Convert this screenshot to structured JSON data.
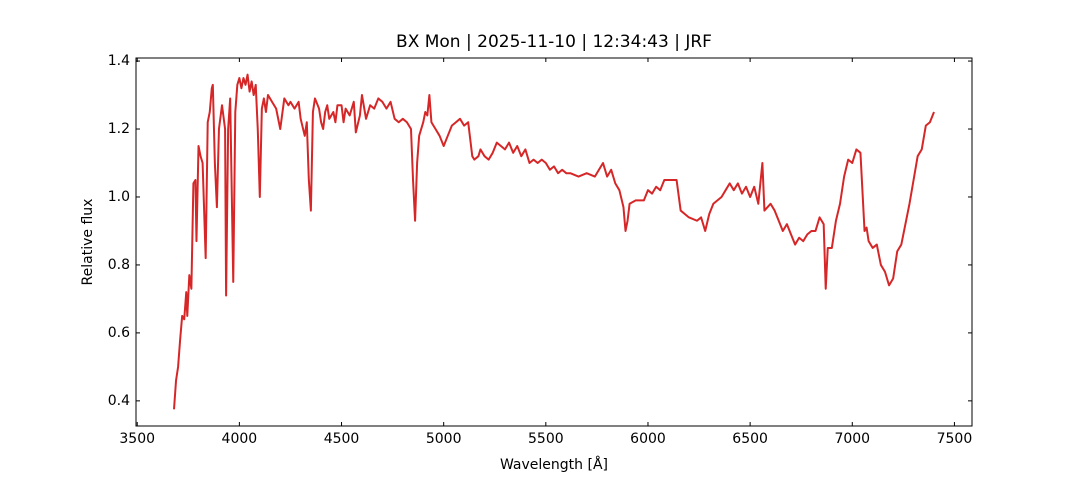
{
  "chart_data": {
    "type": "line",
    "title": "BX Mon | 2025-11-10 | 12:34:43 | JRF",
    "x_label": "Wavelength [Å]",
    "y_label": "Relative flux",
    "color": "#d62728",
    "xlim": [
      3494,
      7586
    ],
    "ylim": [
      0.326,
      1.409
    ],
    "xticks": [
      3500,
      4000,
      4500,
      5000,
      5500,
      6000,
      6500,
      7000,
      7500
    ],
    "yticks": [
      0.4,
      0.6,
      0.8,
      {
        "value": 1,
        "label": "1.0"
      },
      1.2,
      1.4
    ],
    "x": [
      3680,
      3690,
      3700,
      3710,
      3720,
      3730,
      3740,
      3745,
      3755,
      3765,
      3775,
      3785,
      3790,
      3800,
      3810,
      3820,
      3835,
      3845,
      3855,
      3865,
      3870,
      3880,
      3890,
      3900,
      3915,
      3930,
      3935,
      3945,
      3955,
      3970,
      3980,
      3990,
      4000,
      4010,
      4020,
      4030,
      4040,
      4050,
      4060,
      4070,
      4080,
      4090,
      4100,
      4110,
      4120,
      4130,
      4140,
      4160,
      4180,
      4200,
      4220,
      4240,
      4250,
      4270,
      4290,
      4300,
      4320,
      4330,
      4340,
      4350,
      4360,
      4370,
      4390,
      4400,
      4410,
      4420,
      4430,
      4440,
      4460,
      4470,
      4480,
      4500,
      4510,
      4520,
      4540,
      4560,
      4570,
      4590,
      4600,
      4620,
      4640,
      4660,
      4680,
      4700,
      4720,
      4740,
      4760,
      4780,
      4800,
      4820,
      4840,
      4850,
      4860,
      4870,
      4880,
      4900,
      4910,
      4920,
      4930,
      4940,
      4960,
      4980,
      5000,
      5020,
      5040,
      5060,
      5080,
      5100,
      5120,
      5140,
      5150,
      5170,
      5180,
      5200,
      5220,
      5240,
      5260,
      5280,
      5300,
      5320,
      5340,
      5360,
      5380,
      5400,
      5420,
      5440,
      5460,
      5480,
      5500,
      5520,
      5540,
      5560,
      5580,
      5600,
      5620,
      5660,
      5700,
      5740,
      5760,
      5780,
      5800,
      5820,
      5840,
      5860,
      5880,
      5890,
      5900,
      5910,
      5940,
      5980,
      6000,
      6020,
      6040,
      6060,
      6080,
      6100,
      6140,
      6160,
      6200,
      6240,
      6260,
      6280,
      6300,
      6320,
      6360,
      6380,
      6400,
      6420,
      6440,
      6460,
      6480,
      6500,
      6520,
      6540,
      6560,
      6570,
      6600,
      6620,
      6640,
      6660,
      6680,
      6700,
      6720,
      6740,
      6760,
      6780,
      6800,
      6820,
      6840,
      6860,
      6870,
      6880,
      6900,
      6920,
      6940,
      6960,
      6980,
      7000,
      7020,
      7040,
      7060,
      7070,
      7080,
      7100,
      7120,
      7140,
      7160,
      7180,
      7200,
      7220,
      7240,
      7260,
      7280,
      7300,
      7320,
      7340,
      7360,
      7380,
      7400
    ],
    "values": [
      0.375,
      0.46,
      0.5,
      0.58,
      0.65,
      0.64,
      0.72,
      0.65,
      0.77,
      0.73,
      1.04,
      1.05,
      0.87,
      1.15,
      1.12,
      1.1,
      0.82,
      1.22,
      1.25,
      1.32,
      1.33,
      1.1,
      0.97,
      1.2,
      1.27,
      1.2,
      0.71,
      1.2,
      1.29,
      0.75,
      1.25,
      1.33,
      1.35,
      1.32,
      1.35,
      1.33,
      1.36,
      1.31,
      1.34,
      1.3,
      1.33,
      1.2,
      1.0,
      1.26,
      1.29,
      1.25,
      1.3,
      1.28,
      1.26,
      1.2,
      1.29,
      1.27,
      1.28,
      1.26,
      1.28,
      1.23,
      1.18,
      1.22,
      1.05,
      0.96,
      1.25,
      1.29,
      1.26,
      1.22,
      1.2,
      1.25,
      1.27,
      1.23,
      1.25,
      1.22,
      1.27,
      1.27,
      1.22,
      1.26,
      1.24,
      1.28,
      1.19,
      1.24,
      1.3,
      1.23,
      1.27,
      1.26,
      1.29,
      1.28,
      1.26,
      1.28,
      1.23,
      1.22,
      1.23,
      1.22,
      1.2,
      1.05,
      0.93,
      1.1,
      1.18,
      1.22,
      1.25,
      1.24,
      1.3,
      1.22,
      1.2,
      1.18,
      1.15,
      1.18,
      1.21,
      1.22,
      1.23,
      1.21,
      1.22,
      1.12,
      1.11,
      1.12,
      1.14,
      1.12,
      1.11,
      1.13,
      1.16,
      1.15,
      1.14,
      1.16,
      1.13,
      1.15,
      1.12,
      1.14,
      1.1,
      1.11,
      1.1,
      1.11,
      1.1,
      1.08,
      1.09,
      1.07,
      1.08,
      1.07,
      1.07,
      1.06,
      1.07,
      1.06,
      1.08,
      1.1,
      1.06,
      1.08,
      1.04,
      1.02,
      0.97,
      0.9,
      0.93,
      0.98,
      0.99,
      0.99,
      1.02,
      1.01,
      1.03,
      1.02,
      1.05,
      1.05,
      1.05,
      0.96,
      0.94,
      0.93,
      0.94,
      0.9,
      0.95,
      0.98,
      1.0,
      1.02,
      1.04,
      1.02,
      1.04,
      1.01,
      1.03,
      1.0,
      1.03,
      0.98,
      1.1,
      0.96,
      0.98,
      0.96,
      0.93,
      0.9,
      0.92,
      0.89,
      0.86,
      0.88,
      0.87,
      0.89,
      0.9,
      0.9,
      0.94,
      0.92,
      0.73,
      0.85,
      0.85,
      0.93,
      0.98,
      1.06,
      1.11,
      1.1,
      1.14,
      1.13,
      0.9,
      0.91,
      0.87,
      0.85,
      0.86,
      0.8,
      0.78,
      0.74,
      0.76,
      0.84,
      0.86,
      0.92,
      0.98,
      1.05,
      1.12,
      1.14,
      1.21,
      1.22,
      1.25
    ]
  }
}
